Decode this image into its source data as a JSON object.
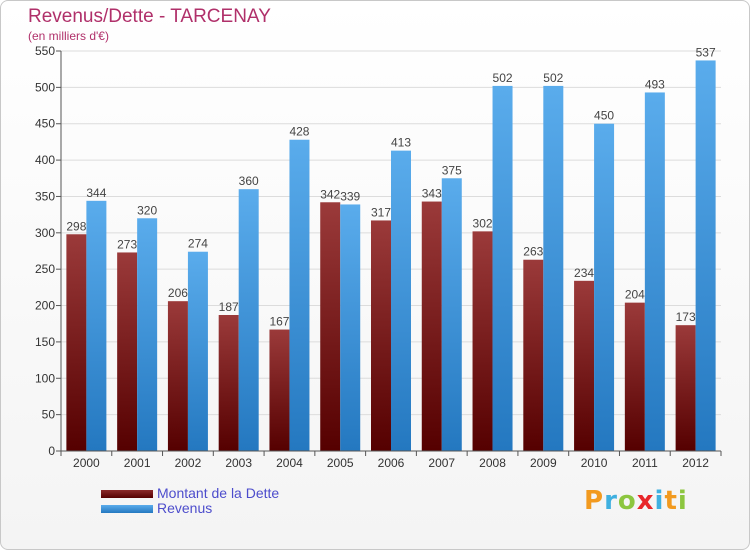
{
  "chart_data": {
    "type": "bar",
    "title": "Revenus/Dette - TARCENAY",
    "subtitle": "(en milliers d'€)",
    "categories": [
      "2000",
      "2001",
      "2002",
      "2003",
      "2004",
      "2005",
      "2006",
      "2007",
      "2008",
      "2009",
      "2010",
      "2011",
      "2012"
    ],
    "series": [
      {
        "name": "Montant de la Dette",
        "color": "#7a1a1a",
        "values": [
          298,
          273,
          206,
          187,
          167,
          342,
          317,
          343,
          302,
          263,
          234,
          204,
          173
        ]
      },
      {
        "name": "Revenus",
        "color": "#3a8fd8",
        "values": [
          344,
          320,
          274,
          360,
          428,
          339,
          413,
          375,
          502,
          502,
          450,
          493,
          537
        ]
      }
    ],
    "ylim": [
      0,
      550
    ],
    "yticks": [
      0,
      50,
      100,
      150,
      200,
      250,
      300,
      350,
      400,
      450,
      500,
      550
    ],
    "grid": true,
    "legend_position": "bottom-left"
  },
  "logo": {
    "text": "Proxiti",
    "letters": [
      {
        "char": "P",
        "color": "#f29a1f"
      },
      {
        "char": "r",
        "color": "#3fb0e0"
      },
      {
        "char": "o",
        "color": "#8cc63f"
      },
      {
        "char": "x",
        "color": "#e8262a"
      },
      {
        "char": "i",
        "color": "#3fb0e0"
      },
      {
        "char": "t",
        "color": "#f29a1f"
      },
      {
        "char": "i",
        "color": "#8cc63f"
      }
    ]
  }
}
